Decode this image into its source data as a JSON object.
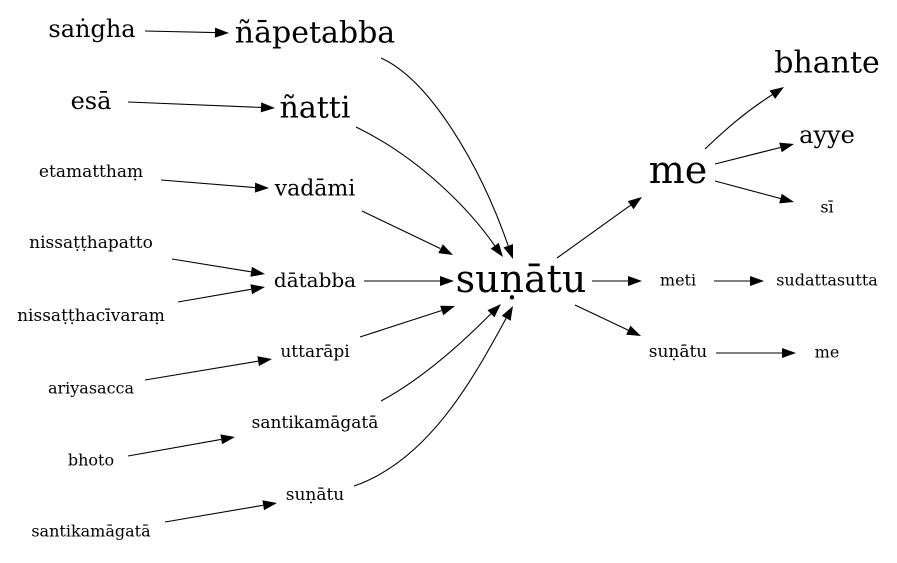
{
  "nodes": [
    {
      "id": "sangha",
      "label": "saṅgha"
    },
    {
      "id": "napetabba",
      "label": "ñāpetabba"
    },
    {
      "id": "esa",
      "label": "esā"
    },
    {
      "id": "natti",
      "label": "ñatti"
    },
    {
      "id": "etamatthamm",
      "label": "etamatthaṃ"
    },
    {
      "id": "vadami",
      "label": "vadāmi"
    },
    {
      "id": "nissatthapatto",
      "label": "nissaṭṭhapatto"
    },
    {
      "id": "databba",
      "label": "dātabba"
    },
    {
      "id": "nissatthacivaram",
      "label": "nissaṭṭhacīvaraṃ"
    },
    {
      "id": "uttarapi",
      "label": "uttarāpi"
    },
    {
      "id": "ariyasacca",
      "label": "ariyasacca"
    },
    {
      "id": "santikamagata1",
      "label": "santikamāgatā"
    },
    {
      "id": "bhoto",
      "label": "bhoto"
    },
    {
      "id": "sunatu_small",
      "label": "suṇātu"
    },
    {
      "id": "santikamagata2",
      "label": "santikamāgatā"
    },
    {
      "id": "sunatu_main",
      "label": "suṇātu"
    },
    {
      "id": "me_big",
      "label": "me"
    },
    {
      "id": "bhante",
      "label": "bhante"
    },
    {
      "id": "ayye",
      "label": "ayye"
    },
    {
      "id": "si",
      "label": "sī"
    },
    {
      "id": "meti",
      "label": "meti"
    },
    {
      "id": "sudattasutta",
      "label": "sudattasutta"
    },
    {
      "id": "sunatu_right",
      "label": "suṇātu"
    },
    {
      "id": "me_small",
      "label": "me"
    }
  ],
  "edges": [
    {
      "from": "sangha",
      "to": "napetabba"
    },
    {
      "from": "esa",
      "to": "natti"
    },
    {
      "from": "etamatthamm",
      "to": "vadami"
    },
    {
      "from": "nissatthapatto",
      "to": "databba"
    },
    {
      "from": "nissatthacivaram",
      "to": "databba"
    },
    {
      "from": "ariyasacca",
      "to": "uttarapi"
    },
    {
      "from": "bhoto",
      "to": "santikamagata1"
    },
    {
      "from": "santikamagata2",
      "to": "sunatu_small"
    },
    {
      "from": "napetabba",
      "to": "sunatu_main"
    },
    {
      "from": "natti",
      "to": "sunatu_main"
    },
    {
      "from": "vadami",
      "to": "sunatu_main"
    },
    {
      "from": "databba",
      "to": "sunatu_main"
    },
    {
      "from": "uttarapi",
      "to": "sunatu_main"
    },
    {
      "from": "santikamagata1",
      "to": "sunatu_main"
    },
    {
      "from": "sunatu_small",
      "to": "sunatu_main"
    },
    {
      "from": "sunatu_main",
      "to": "me_big"
    },
    {
      "from": "sunatu_main",
      "to": "meti"
    },
    {
      "from": "sunatu_main",
      "to": "sunatu_right"
    },
    {
      "from": "me_big",
      "to": "bhante"
    },
    {
      "from": "me_big",
      "to": "ayye"
    },
    {
      "from": "me_big",
      "to": "si"
    },
    {
      "from": "meti",
      "to": "sudattasutta"
    },
    {
      "from": "sunatu_right",
      "to": "me_small"
    }
  ]
}
